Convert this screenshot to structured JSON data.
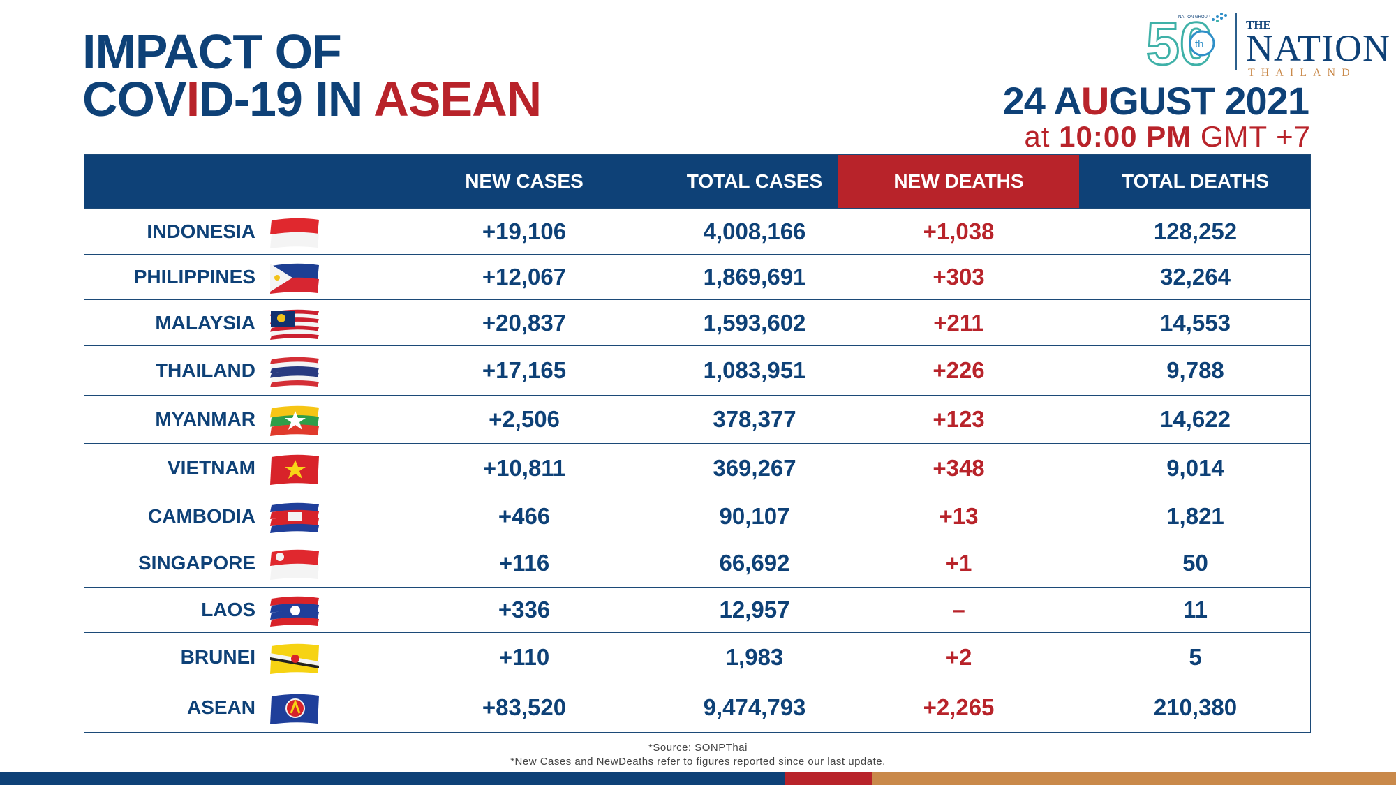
{
  "title": {
    "line1": "IMPACT OF",
    "line2_pre": "COV",
    "line2_accent": "I",
    "line2_mid": "D-19 IN ",
    "line2_red": "ASEAN"
  },
  "logo": {
    "badge_number": "50",
    "badge_suffix": "th",
    "badge_small": "NATION GROUP",
    "the": "THE",
    "name": "NATION",
    "sub": "THAILAND"
  },
  "date": {
    "pre": "24 A",
    "accent": "U",
    "post": "GUST 2021"
  },
  "time": {
    "pre": "at ",
    "bold": "10:00 PM",
    "post": " GMT +7"
  },
  "colors": {
    "navy": "#0e4177",
    "red": "#b8232a",
    "gold": "#c9894a"
  },
  "chart_data": {
    "type": "table",
    "columns": [
      "",
      "NEW CASES",
      "TOTAL CASES",
      "NEW DEATHS",
      "TOTAL DEATHS"
    ],
    "rows": [
      {
        "country": "INDONESIA",
        "flag": "indonesia-flag",
        "new_cases": "+19,106",
        "total_cases": "4,008,166",
        "new_deaths": "+1,038",
        "total_deaths": "128,252"
      },
      {
        "country": "PHILIPPINES",
        "flag": "philippines-flag",
        "new_cases": "+12,067",
        "total_cases": "1,869,691",
        "new_deaths": "+303",
        "total_deaths": "32,264"
      },
      {
        "country": "MALAYSIA",
        "flag": "malaysia-flag",
        "new_cases": "+20,837",
        "total_cases": "1,593,602",
        "new_deaths": "+211",
        "total_deaths": "14,553"
      },
      {
        "country": "THAILAND",
        "flag": "thailand-flag",
        "new_cases": "+17,165",
        "total_cases": "1,083,951",
        "new_deaths": "+226",
        "total_deaths": "9,788"
      },
      {
        "country": "MYANMAR",
        "flag": "myanmar-flag",
        "new_cases": "+2,506",
        "total_cases": "378,377",
        "new_deaths": "+123",
        "total_deaths": "14,622"
      },
      {
        "country": "VIETNAM",
        "flag": "vietnam-flag",
        "new_cases": "+10,811",
        "total_cases": "369,267",
        "new_deaths": "+348",
        "total_deaths": "9,014"
      },
      {
        "country": "CAMBODIA",
        "flag": "cambodia-flag",
        "new_cases": "+466",
        "total_cases": "90,107",
        "new_deaths": "+13",
        "total_deaths": "1,821"
      },
      {
        "country": "SINGAPORE",
        "flag": "singapore-flag",
        "new_cases": "+116",
        "total_cases": "66,692",
        "new_deaths": "+1",
        "total_deaths": "50"
      },
      {
        "country": "LAOS",
        "flag": "laos-flag",
        "new_cases": "+336",
        "total_cases": "12,957",
        "new_deaths": "–",
        "total_deaths": "11"
      },
      {
        "country": "BRUNEI",
        "flag": "brunei-flag",
        "new_cases": "+110",
        "total_cases": "1,983",
        "new_deaths": "+2",
        "total_deaths": "5"
      },
      {
        "country": "ASEAN",
        "flag": "asean-flag",
        "new_cases": "+83,520",
        "total_cases": "9,474,793",
        "new_deaths": "+2,265",
        "total_deaths": "210,380"
      }
    ]
  },
  "footnotes": {
    "source": "*Source: SONPThai",
    "note": "*New Cases and NewDeaths refer to figures reported since our last update."
  }
}
